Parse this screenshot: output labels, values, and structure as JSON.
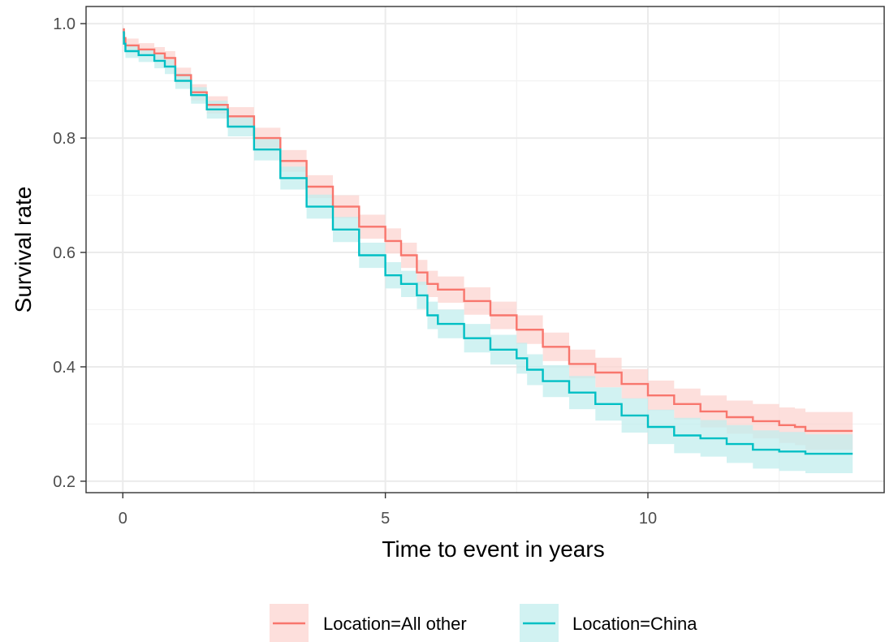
{
  "chart_data": {
    "type": "line",
    "subtype": "kaplan-meier survival curve with confidence bands",
    "title": "",
    "xlabel": "Time to event in years",
    "ylabel": "Survival rate",
    "xlim": [
      -0.7,
      14.5
    ],
    "ylim": [
      0.18,
      1.03
    ],
    "x_ticks": [
      0,
      5,
      10
    ],
    "x_tick_labels": [
      "0",
      "5",
      "10"
    ],
    "y_ticks": [
      0.2,
      0.4,
      0.6,
      0.8,
      1.0
    ],
    "y_tick_labels": [
      "0.2",
      "0.4",
      "0.6",
      "0.8",
      "1.0"
    ],
    "grid": true,
    "legend_position": "bottom",
    "series": [
      {
        "name": "Location=All other",
        "color": "#F8766D",
        "band_color": "#FCD4D0",
        "x": [
          0,
          0.02,
          0.05,
          0.3,
          0.6,
          0.8,
          1.0,
          1.3,
          1.6,
          2.0,
          2.5,
          3.0,
          3.5,
          4.0,
          4.5,
          5.0,
          5.3,
          5.6,
          5.8,
          6.0,
          6.5,
          7.0,
          7.5,
          8.0,
          8.5,
          9.0,
          9.5,
          10.0,
          10.5,
          11.0,
          11.5,
          12.0,
          12.5,
          12.8,
          13.0,
          13.5,
          13.9
        ],
        "y": [
          0.99,
          0.975,
          0.962,
          0.955,
          0.948,
          0.94,
          0.91,
          0.88,
          0.858,
          0.838,
          0.8,
          0.76,
          0.715,
          0.68,
          0.645,
          0.62,
          0.595,
          0.565,
          0.545,
          0.535,
          0.515,
          0.49,
          0.465,
          0.435,
          0.405,
          0.39,
          0.37,
          0.35,
          0.335,
          0.322,
          0.312,
          0.305,
          0.298,
          0.295,
          0.288,
          0.288,
          0.288
        ],
        "lower": [
          0.98,
          0.962,
          0.95,
          0.944,
          0.937,
          0.928,
          0.897,
          0.866,
          0.843,
          0.822,
          0.782,
          0.741,
          0.695,
          0.66,
          0.624,
          0.598,
          0.573,
          0.543,
          0.522,
          0.512,
          0.491,
          0.466,
          0.44,
          0.41,
          0.38,
          0.364,
          0.344,
          0.324,
          0.308,
          0.294,
          0.283,
          0.275,
          0.267,
          0.263,
          0.255,
          0.255,
          0.255
        ],
        "upper": [
          0.995,
          0.985,
          0.974,
          0.966,
          0.959,
          0.952,
          0.923,
          0.894,
          0.873,
          0.854,
          0.818,
          0.779,
          0.735,
          0.7,
          0.666,
          0.642,
          0.617,
          0.587,
          0.568,
          0.558,
          0.539,
          0.514,
          0.49,
          0.46,
          0.43,
          0.416,
          0.396,
          0.376,
          0.362,
          0.35,
          0.341,
          0.335,
          0.329,
          0.327,
          0.321,
          0.321,
          0.321
        ]
      },
      {
        "name": "Location=China",
        "color": "#00BFC4",
        "band_color": "#C2EDEE",
        "x": [
          0,
          0.02,
          0.05,
          0.3,
          0.6,
          0.8,
          1.0,
          1.3,
          1.6,
          2.0,
          2.5,
          3.0,
          3.5,
          4.0,
          4.5,
          5.0,
          5.3,
          5.6,
          5.8,
          6.0,
          6.5,
          7.0,
          7.5,
          7.7,
          8.0,
          8.5,
          9.0,
          9.5,
          10.0,
          10.5,
          11.0,
          11.5,
          12.0,
          12.5,
          12.8,
          13.0,
          13.5,
          13.9
        ],
        "y": [
          0.985,
          0.965,
          0.952,
          0.945,
          0.935,
          0.925,
          0.9,
          0.875,
          0.85,
          0.82,
          0.78,
          0.73,
          0.68,
          0.64,
          0.595,
          0.56,
          0.545,
          0.525,
          0.49,
          0.475,
          0.45,
          0.43,
          0.415,
          0.395,
          0.375,
          0.355,
          0.335,
          0.315,
          0.295,
          0.28,
          0.275,
          0.265,
          0.255,
          0.252,
          0.252,
          0.248,
          0.248,
          0.248
        ],
        "lower": [
          0.975,
          0.952,
          0.94,
          0.933,
          0.922,
          0.912,
          0.886,
          0.86,
          0.834,
          0.803,
          0.761,
          0.71,
          0.659,
          0.618,
          0.573,
          0.537,
          0.522,
          0.501,
          0.466,
          0.45,
          0.425,
          0.404,
          0.388,
          0.368,
          0.347,
          0.326,
          0.306,
          0.285,
          0.265,
          0.249,
          0.243,
          0.232,
          0.222,
          0.218,
          0.218,
          0.214,
          0.214,
          0.214
        ],
        "upper": [
          0.993,
          0.976,
          0.963,
          0.956,
          0.946,
          0.937,
          0.913,
          0.889,
          0.865,
          0.836,
          0.798,
          0.75,
          0.701,
          0.662,
          0.617,
          0.583,
          0.568,
          0.549,
          0.514,
          0.5,
          0.475,
          0.456,
          0.442,
          0.422,
          0.403,
          0.384,
          0.364,
          0.345,
          0.325,
          0.311,
          0.307,
          0.298,
          0.289,
          0.286,
          0.286,
          0.282,
          0.282,
          0.282
        ]
      }
    ]
  }
}
